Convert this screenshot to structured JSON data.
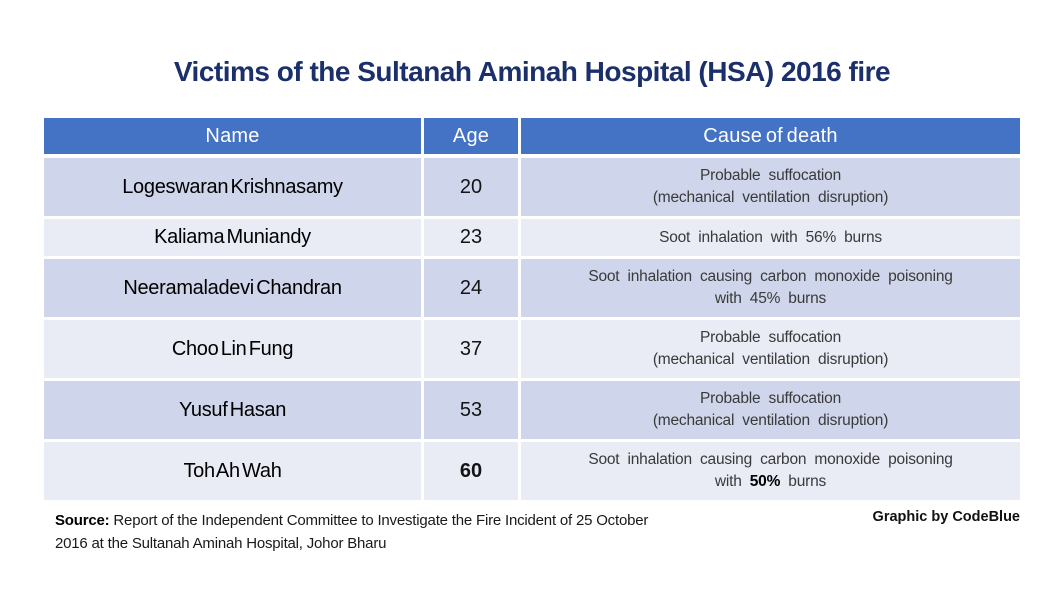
{
  "theme": {
    "page_bg": "#ffffff",
    "title_color": "#1b2f6b",
    "header_bg": "#4472c4",
    "header_fg": "#ffffff",
    "band_dark": "#cfd5ea",
    "band_light": "#e9ebf5"
  },
  "title": "Victims of the Sultanah Aminah Hospital (HSA) 2016 fire",
  "table": {
    "header": {
      "columns": [
        "Name",
        "Age",
        "Cause of death"
      ]
    },
    "rows": [
      {
        "name": "Logeswaran Krishnasamy",
        "age": "20",
        "age_bold": false,
        "cause_lines": [
          [
            {
              "t": "Probable suffocation"
            }
          ],
          [
            {
              "t": "(mechanical ventilation disruption)"
            }
          ]
        ]
      },
      {
        "name": "Kaliama Muniandy",
        "age": "23",
        "age_bold": false,
        "cause_lines": [
          [
            {
              "t": "Soot inhalation with 56% burns"
            }
          ]
        ]
      },
      {
        "name": "Neeramaladevi Chandran",
        "age": "24",
        "age_bold": false,
        "cause_lines": [
          [
            {
              "t": "Soot inhalation causing carbon monoxide poisoning"
            }
          ],
          [
            {
              "t": "with 45% burns"
            }
          ]
        ]
      },
      {
        "name": "Choo Lin Fung",
        "age": "37",
        "age_bold": false,
        "cause_lines": [
          [
            {
              "t": "Probable suffocation"
            }
          ],
          [
            {
              "t": "(mechanical ventilation disruption)"
            }
          ]
        ]
      },
      {
        "name": "Yusuf Hasan",
        "age": "53",
        "age_bold": false,
        "cause_lines": [
          [
            {
              "t": "Probable suffocation"
            }
          ],
          [
            {
              "t": "(mechanical ventilation disruption)"
            }
          ]
        ]
      },
      {
        "name": "Toh Ah Wah",
        "age": "60",
        "age_bold": true,
        "cause_lines": [
          [
            {
              "t": "Soot inhalation causing carbon monoxide poisoning"
            }
          ],
          [
            {
              "t": "with "
            },
            {
              "t": "50%",
              "bold": true
            },
            {
              "t": " burns"
            }
          ]
        ]
      }
    ]
  },
  "footer": {
    "source_label": "Source:",
    "source_text": " Report of the Independent Committee to Investigate the Fire Incident of 25 October 2016 at the Sultanah Aminah Hospital, Johor Bharu",
    "credit": "Graphic by CodeBlue"
  },
  "chart_data": {
    "type": "table",
    "title": "Victims of the Sultanah Aminah Hospital (HSA) 2016 fire",
    "columns": [
      "Name",
      "Age",
      "Cause of death"
    ],
    "rows": [
      [
        "Logeswaran Krishnasamy",
        20,
        "Probable suffocation (mechanical ventilation disruption)"
      ],
      [
        "Kaliama Muniandy",
        23,
        "Soot inhalation with 56% burns"
      ],
      [
        "Neeramaladevi Chandran",
        24,
        "Soot inhalation causing carbon monoxide poisoning with 45% burns"
      ],
      [
        "Choo Lin Fung",
        37,
        "Probable suffocation (mechanical ventilation disruption)"
      ],
      [
        "Yusuf Hasan",
        53,
        "Probable suffocation (mechanical ventilation disruption)"
      ],
      [
        "Toh Ah Wah",
        60,
        "Soot inhalation causing carbon monoxide poisoning with 50% burns"
      ]
    ],
    "source": "Report of the Independent Committee to Investigate the Fire Incident of 25 October 2016 at the Sultanah Aminah Hospital, Johor Bharu",
    "credit": "Graphic by CodeBlue"
  }
}
